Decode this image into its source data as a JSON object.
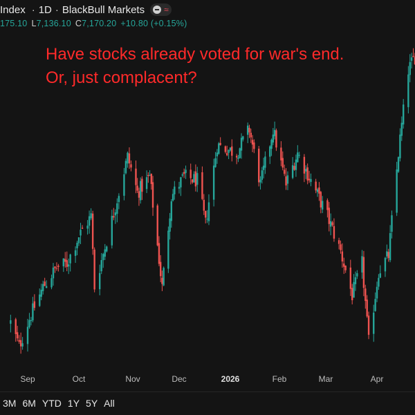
{
  "header": {
    "symbol_tail": "Index",
    "interval": "1D",
    "source": "BlackBull Markets",
    "minus_icon": "minus-circle-icon",
    "wave_icon": "wave-icon"
  },
  "ohlc": {
    "open_tail": "175.10",
    "low_label": "L",
    "low": "7,136.10",
    "close_label": "C",
    "close": "7,170.20",
    "change": "+10.80 (+0.15%)"
  },
  "annotation": {
    "line1": "Have stocks already voted for war's end.",
    "line2": "Or, just complacent?"
  },
  "range_buttons": [
    "3M",
    "6M",
    "YTD",
    "1Y",
    "5Y",
    "All"
  ],
  "colors": {
    "background": "#141414",
    "up": "#26a69a",
    "down": "#ef5350",
    "annotation": "#ff2a2a"
  },
  "chart_data": {
    "type": "candlestick",
    "title": "",
    "xlabel": "",
    "ylabel": "",
    "x_ticks": [
      {
        "label": "Sep",
        "date": "2025-09-01"
      },
      {
        "label": "Oct",
        "date": "2025-10-01"
      },
      {
        "label": "Nov",
        "date": "2025-11-01"
      },
      {
        "label": "Dec",
        "date": "2025-12-01"
      },
      {
        "label": "2026",
        "date": "2026-01-01",
        "emphasis": true
      },
      {
        "label": "Feb",
        "date": "2026-02-01"
      },
      {
        "label": "Mar",
        "date": "2026-03-01"
      },
      {
        "label": "Apr",
        "date": "2026-04-01"
      }
    ],
    "ylim": [
      6350,
      7200
    ],
    "grid": false,
    "anchors": [
      {
        "date": "2025-08-22",
        "close": 6470
      },
      {
        "date": "2025-08-27",
        "close": 6410
      },
      {
        "date": "2025-09-02",
        "close": 6480
      },
      {
        "date": "2025-09-10",
        "close": 6560
      },
      {
        "date": "2025-09-18",
        "close": 6610
      },
      {
        "date": "2025-09-24",
        "close": 6620
      },
      {
        "date": "2025-10-01",
        "close": 6690
      },
      {
        "date": "2025-10-08",
        "close": 6740
      },
      {
        "date": "2025-10-10",
        "close": 6560
      },
      {
        "date": "2025-10-20",
        "close": 6730
      },
      {
        "date": "2025-10-29",
        "close": 6890
      },
      {
        "date": "2025-11-04",
        "close": 6800
      },
      {
        "date": "2025-11-12",
        "close": 6840
      },
      {
        "date": "2025-11-20",
        "close": 6560
      },
      {
        "date": "2025-11-26",
        "close": 6790
      },
      {
        "date": "2025-12-04",
        "close": 6840
      },
      {
        "date": "2025-12-12",
        "close": 6830
      },
      {
        "date": "2025-12-17",
        "close": 6720
      },
      {
        "date": "2025-12-24",
        "close": 6920
      },
      {
        "date": "2026-01-05",
        "close": 6900
      },
      {
        "date": "2026-01-13",
        "close": 6960
      },
      {
        "date": "2026-01-20",
        "close": 6820
      },
      {
        "date": "2026-01-28",
        "close": 6960
      },
      {
        "date": "2026-02-05",
        "close": 6820
      },
      {
        "date": "2026-02-12",
        "close": 6900
      },
      {
        "date": "2026-02-20",
        "close": 6830
      },
      {
        "date": "2026-03-02",
        "close": 6740
      },
      {
        "date": "2026-03-10",
        "close": 6650
      },
      {
        "date": "2026-03-17",
        "close": 6540
      },
      {
        "date": "2026-03-23",
        "close": 6620
      },
      {
        "date": "2026-03-27",
        "close": 6420
      },
      {
        "date": "2026-04-02",
        "close": 6600
      },
      {
        "date": "2026-04-08",
        "close": 6640
      },
      {
        "date": "2026-04-14",
        "close": 6900
      },
      {
        "date": "2026-04-20",
        "close": 7110
      },
      {
        "date": "2026-04-27",
        "close": 7170
      }
    ]
  }
}
